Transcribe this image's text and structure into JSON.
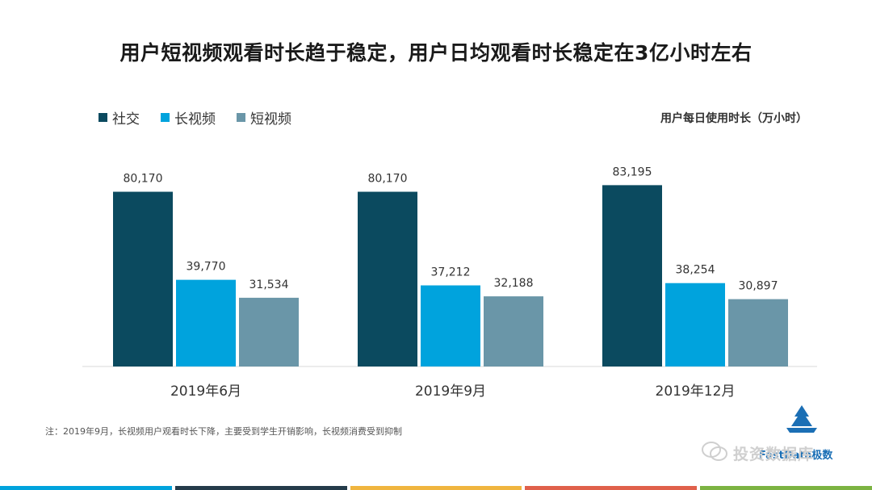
{
  "title": "用户短视频观看时长趋于稳定，用户日均观看时长稳定在3亿小时左右",
  "units_label": "用户每日使用时长（万小时）",
  "note": "注：2019年9月，长视频用户观看时长下降，主要受到学生开销影响，长视频消费受到抑制",
  "watermark": "投资数据库",
  "logo_text": "FastData极数",
  "colors": {
    "social": "#0b4a5f",
    "long_video": "#00a3dd",
    "short_video": "#6a96a8",
    "axis": "#d9d9d9",
    "bar_strip": [
      "#00a3dd",
      "#243b4a",
      "#f0b53f",
      "#e0604b",
      "#7cb342"
    ]
  },
  "chart_data": {
    "type": "bar",
    "title": "用户每日使用时长（万小时）",
    "categories": [
      "2019年6月",
      "2019年9月",
      "2019年12月"
    ],
    "series": [
      {
        "name": "社交",
        "values": [
          80170,
          80170,
          83195
        ]
      },
      {
        "name": "长视频",
        "values": [
          39770,
          37212,
          38254
        ]
      },
      {
        "name": "短视频",
        "values": [
          31534,
          32188,
          30897
        ]
      }
    ],
    "value_labels": [
      [
        "80,170",
        "80,170",
        "83,195"
      ],
      [
        "39,770",
        "37,212",
        "38,254"
      ],
      [
        "31,534",
        "32,188",
        "30,897"
      ]
    ],
    "ylim": [
      0,
      100000
    ],
    "legend": "top-left",
    "grid": false
  }
}
